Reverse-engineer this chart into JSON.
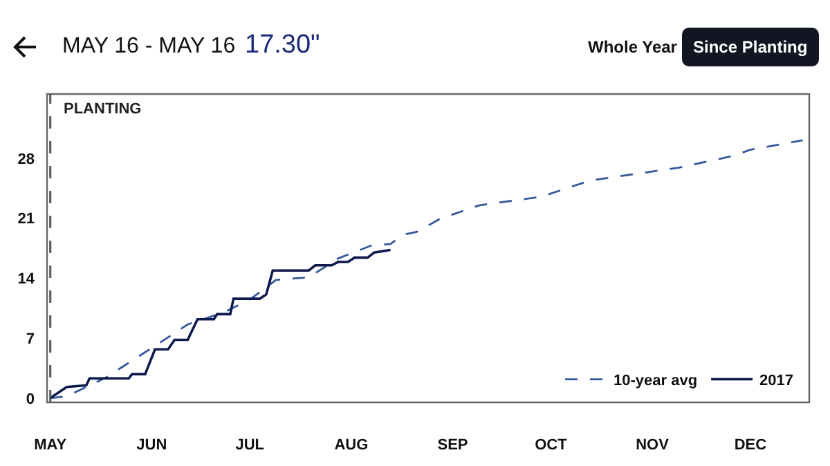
{
  "chart_data": {
    "type": "line",
    "title": "MAY 16 - MAY 16",
    "subtitle": "17.30\"",
    "annotations": [
      "Whole Year",
      "Since Planting"
    ],
    "xlim": [
      "2017-04-30",
      "2017-12-19"
    ],
    "ylim": [
      -0.5,
      35.5
    ],
    "xticks": [
      {
        "value": "2017-05-01",
        "label": "MAY"
      },
      {
        "value": "2017-06-01",
        "label": "JUN"
      },
      {
        "value": "2017-07-01",
        "label": "JUL"
      },
      {
        "value": "2017-08-01",
        "label": "AUG"
      },
      {
        "value": "2017-09-01",
        "label": "SEP"
      },
      {
        "value": "2017-10-01",
        "label": "OCT"
      },
      {
        "value": "2017-11-01",
        "label": "NOV"
      },
      {
        "value": "2017-12-01",
        "label": "DEC"
      }
    ],
    "yticks": [
      0,
      7,
      14,
      21,
      28
    ],
    "grid": false,
    "legend": "bottom right",
    "marker": "none",
    "ref_lines": [
      {
        "axis": "x",
        "value": "2017-05-01",
        "label": "PLANTING",
        "color": "#555555",
        "line_style": "dashed"
      }
    ],
    "series": [
      {
        "name": "10-year avg",
        "color": "#34589a",
        "line_style": "dashed",
        "x": [
          "2017-05-01",
          "2017-05-06",
          "2017-05-18",
          "2017-06-02",
          "2017-06-12",
          "2017-06-23",
          "2017-07-01",
          "2017-07-09",
          "2017-07-19",
          "2017-07-28",
          "2017-08-07",
          "2017-08-13",
          "2017-08-17",
          "2017-08-21",
          "2017-08-28",
          "2017-09-09",
          "2017-09-28",
          "2017-10-13",
          "2017-11-09",
          "2017-11-26",
          "2017-12-01",
          "2017-12-17"
        ],
        "values": [
          0,
          0.2,
          2.4,
          6.1,
          8.6,
          10,
          11.5,
          13.8,
          14.1,
          16.3,
          17.8,
          18,
          19.1,
          19.4,
          20.9,
          22.5,
          23.5,
          25.4,
          26.9,
          28.3,
          29,
          30.1
        ]
      },
      {
        "name": "2017",
        "color": "#0d1a4d",
        "line_style": "solid",
        "x": [
          "2017-05-01",
          "2017-05-06",
          "2017-05-12",
          "2017-05-13",
          "2017-05-25",
          "2017-05-26",
          "2017-05-30",
          "2017-06-02",
          "2017-06-06",
          "2017-06-08",
          "2017-06-12",
          "2017-06-15",
          "2017-06-20",
          "2017-06-21",
          "2017-06-25",
          "2017-06-26",
          "2017-07-04",
          "2017-07-06",
          "2017-07-08",
          "2017-07-19",
          "2017-07-21",
          "2017-07-26",
          "2017-07-28",
          "2017-07-31",
          "2017-08-02",
          "2017-08-06",
          "2017-08-08",
          "2017-08-13"
        ],
        "values": [
          0,
          1.3,
          1.5,
          2.3,
          2.3,
          2.8,
          2.8,
          5.7,
          5.7,
          6.8,
          6.8,
          9.2,
          9.2,
          9.8,
          9.8,
          11.6,
          11.6,
          12.1,
          14.9,
          14.9,
          15.5,
          15.5,
          15.9,
          15.9,
          16.4,
          16.4,
          17,
          17.3
        ]
      }
    ]
  }
}
